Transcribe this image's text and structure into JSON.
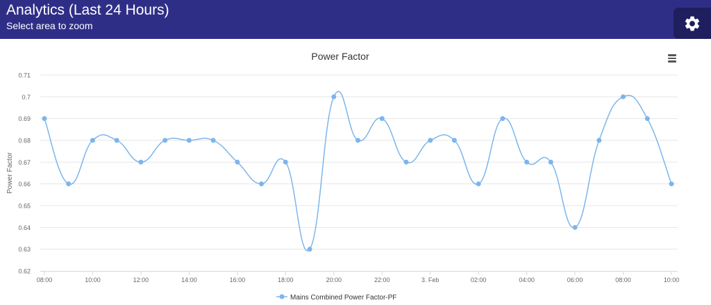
{
  "header": {
    "title": "Analytics (Last 24 Hours)",
    "subtitle": "Select area to zoom",
    "settings_icon": "gear-icon"
  },
  "chart_menu_icon": "hamburger-menu-icon",
  "colors": {
    "header_bg": "#2f2e87",
    "series": "#7cb5ec"
  },
  "chart_data": {
    "type": "line",
    "title": "Power Factor",
    "ylabel": "Power Factor",
    "xlabel": "",
    "ylim": [
      0.62,
      0.71
    ],
    "yticks": [
      "0.62",
      "0.63",
      "0.64",
      "0.65",
      "0.66",
      "0.67",
      "0.68",
      "0.69",
      "0.7",
      "0.71"
    ],
    "xticks": [
      "08:00",
      "10:00",
      "12:00",
      "14:00",
      "16:00",
      "18:00",
      "20:00",
      "22:00",
      "3. Feb",
      "02:00",
      "04:00",
      "06:00",
      "08:00",
      "10:00"
    ],
    "x": [
      "08:00",
      "09:00",
      "10:00",
      "11:00",
      "12:00",
      "13:00",
      "14:00",
      "15:00",
      "16:00",
      "17:00",
      "18:00",
      "19:00",
      "20:00",
      "21:00",
      "22:00",
      "23:00",
      "3. Feb",
      "01:00",
      "02:00",
      "03:00",
      "04:00",
      "05:00",
      "06:00",
      "07:00",
      "08:00",
      "09:00",
      "10:00"
    ],
    "series": [
      {
        "name": "Mains Combined Power Factor-PF",
        "values": [
          0.69,
          0.66,
          0.68,
          0.68,
          0.67,
          0.68,
          0.68,
          0.68,
          0.67,
          0.66,
          0.67,
          0.63,
          0.7,
          0.68,
          0.69,
          0.67,
          0.68,
          0.68,
          0.66,
          0.69,
          0.67,
          0.67,
          0.64,
          0.68,
          0.7,
          0.69,
          0.66
        ]
      }
    ],
    "grid": true,
    "legend": "bottom-center"
  }
}
